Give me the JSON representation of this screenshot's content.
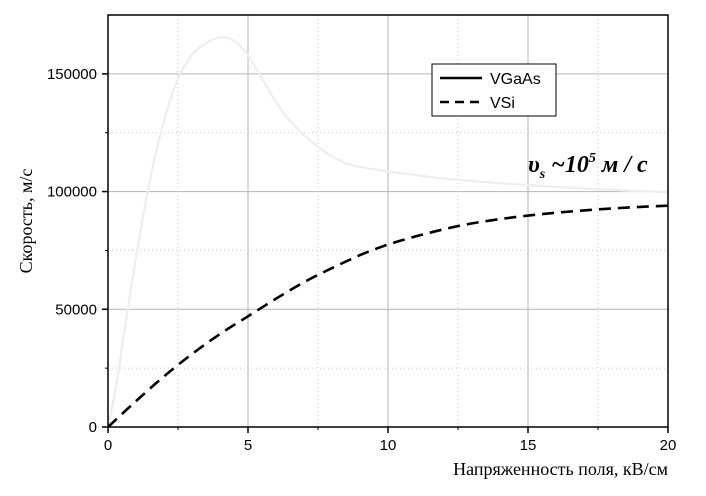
{
  "chart_data": {
    "type": "line",
    "xlabel": "Напряженность поля, кВ/см",
    "ylabel": "Скорость, м/с",
    "xlim": [
      0,
      20
    ],
    "ylim": [
      0,
      175000
    ],
    "xticks": [
      0,
      5,
      10,
      15,
      20
    ],
    "yticks": [
      0,
      50000,
      100000,
      150000
    ],
    "xtick_labels": [
      "0",
      "5",
      "10",
      "15",
      "20"
    ],
    "ytick_labels": [
      "0",
      "50000",
      "100000",
      "150000"
    ],
    "grid": true,
    "legend_position": "top-right",
    "annotation": {
      "base": "υ",
      "sub": "s",
      "mid": " ~10",
      "sup": "5",
      "tail": " м / с"
    },
    "series": [
      {
        "name": "VGaAs",
        "legend_style": "solid",
        "color": "#eeeeee",
        "x": [
          0,
          0.3,
          0.6,
          1,
          1.5,
          2,
          2.5,
          3,
          3.5,
          4,
          4.5,
          5,
          5.5,
          6,
          6.5,
          7,
          7.5,
          8,
          8.5,
          9,
          10,
          11,
          12,
          13,
          14,
          15,
          16,
          17,
          18,
          19,
          20
        ],
        "y": [
          0,
          18000,
          42000,
          72000,
          105000,
          130000,
          148000,
          158000,
          163000,
          165500,
          164000,
          158000,
          148000,
          138000,
          130000,
          124000,
          119000,
          115000,
          112000,
          110500,
          108500,
          107000,
          105500,
          104500,
          103500,
          102800,
          102000,
          101300,
          100700,
          100200,
          99800
        ]
      },
      {
        "name": "VSi",
        "legend_style": "dashed",
        "color": "#000000",
        "x": [
          0,
          1,
          2,
          3,
          4,
          5,
          6,
          7,
          8,
          9,
          10,
          11,
          12,
          13,
          14,
          15,
          16,
          17,
          18,
          19,
          20
        ],
        "y": [
          0,
          11000,
          21500,
          31000,
          39500,
          47000,
          54500,
          61500,
          67500,
          73000,
          77500,
          81000,
          84000,
          86500,
          88300,
          89800,
          91000,
          92000,
          92800,
          93500,
          94000
        ]
      }
    ]
  }
}
